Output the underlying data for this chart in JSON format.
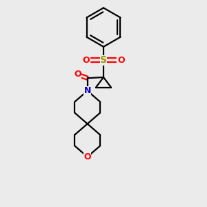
{
  "bg_color": "#ebebeb",
  "bond_color": "#000000",
  "N_color": "#0000cc",
  "O_color": "#ff0000",
  "S_color": "#999900",
  "lw": 1.6,
  "figsize": [
    3.0,
    3.0
  ],
  "dpi": 100,
  "xlim": [
    0,
    10
  ],
  "ylim": [
    0,
    12
  ]
}
